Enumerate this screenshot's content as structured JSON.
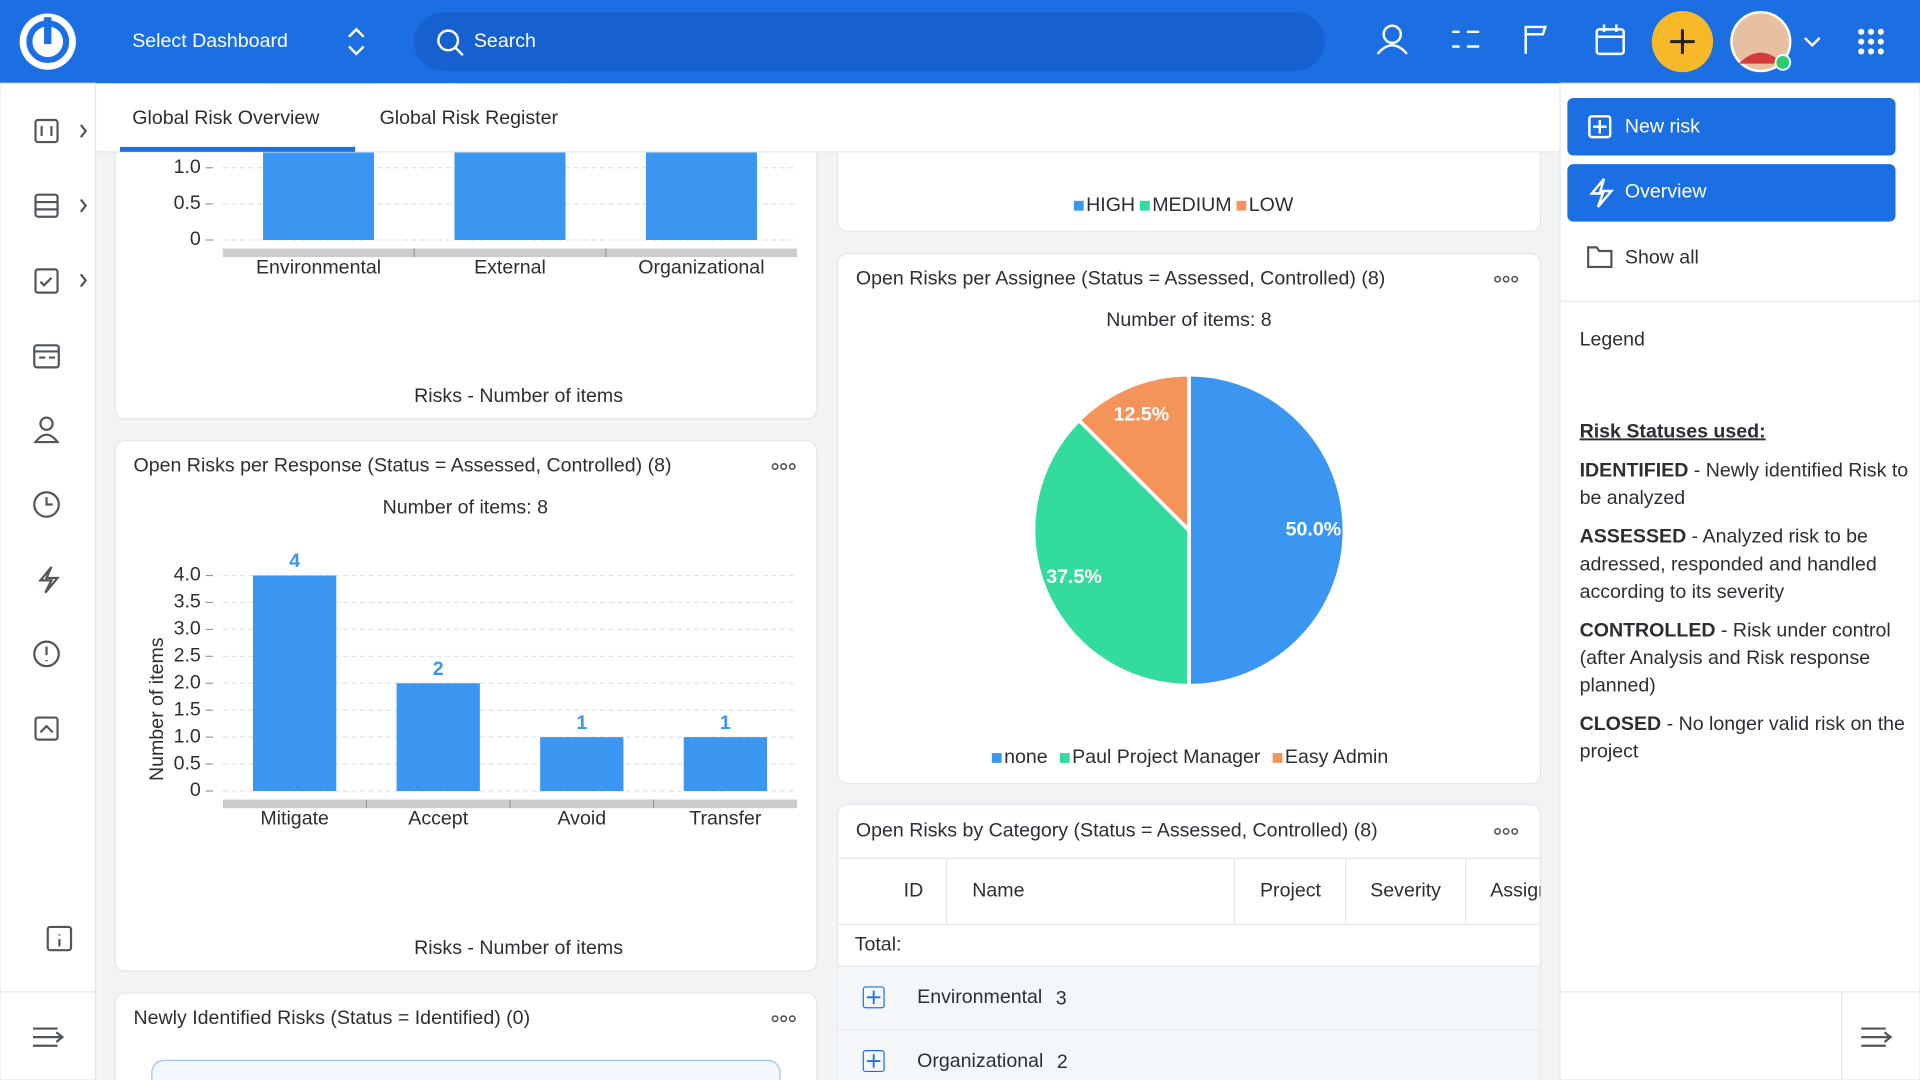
{
  "header": {
    "dashboard_select": "Select Dashboard",
    "search": "Search"
  },
  "tabs": [
    "Global Risk Overview",
    "Global Risk Register"
  ],
  "actions": [
    "New risk",
    "Overview",
    "Show all"
  ],
  "legend_panel": {
    "title": "Legend",
    "heading": "Risk Statuses used:",
    "items": [
      {
        "term": "IDENTIFIED",
        "lines": [
          " - Newly identified Risk to",
          "be analyzed"
        ]
      },
      {
        "term": "ASSESSED",
        "lines": [
          " - Analyzed risk to be",
          "adressed, responded and handled",
          "according to its severity"
        ]
      },
      {
        "term": "CONTROLLED",
        "lines": [
          " - Risk under control",
          "(after Analysis and Risk response",
          "planned)"
        ]
      },
      {
        "term": "CLOSED",
        "lines": [
          " - No longer valid risk on the",
          "project"
        ]
      }
    ]
  },
  "severity_widget": {
    "legend": [
      {
        "name": "HIGH",
        "color": "#3a96f0"
      },
      {
        "name": "MEDIUM",
        "color": "#33dc9c"
      },
      {
        "name": "LOW",
        "color": "#f5945a"
      }
    ]
  },
  "chart_data": [
    {
      "type": "bar",
      "x_label": "Risks - Number of items",
      "categories": [
        "Environmental",
        "External",
        "Organizational"
      ],
      "values": [
        3,
        3,
        2
      ],
      "color": "#3a96f0",
      "ylim": [
        0,
        3.2
      ],
      "yticks": [
        0,
        0.5,
        {
          "value": 1,
          "label": "1.0"
        }
      ],
      "grid": true
    },
    {
      "type": "bar",
      "title": "Open Risks per Response (Status = Assessed, Controlled) (8)",
      "subtitle": "Number of items: 8",
      "y_label": "Number of items",
      "x_label": "Risks - Number of items",
      "categories": [
        "Mitigate",
        "Accept",
        "Avoid",
        "Transfer"
      ],
      "values": [
        4,
        2,
        1,
        1
      ],
      "color": "#3a96f0",
      "ylim": [
        0,
        4.4
      ],
      "yticks": [
        0,
        0.5,
        {
          "value": 1,
          "label": "1.0"
        },
        1.5,
        {
          "value": 2,
          "label": "2.0"
        },
        2.5,
        {
          "value": 3,
          "label": "3.0"
        },
        3.5,
        {
          "value": 4,
          "label": "4.0"
        }
      ],
      "grid": true
    },
    {
      "type": "pie",
      "title": "Open Risks per Assignee (Status = Assessed, Controlled) (8)",
      "subtitle": "Number of items: 8",
      "series": [
        {
          "name": "none",
          "color": "#3a96f0"
        },
        {
          "name": "Paul Project Manager",
          "color": "#33dc9c"
        },
        {
          "name": "Easy Admin",
          "color": "#f5945a"
        }
      ],
      "values": [
        50,
        37.5,
        12.5
      ],
      "value_labels": [
        "50.0%",
        "37.5%",
        "12.5%"
      ]
    }
  ],
  "category_table": {
    "title": "Open Risks by Category (Status = Assessed, Controlled) (8)",
    "columns": [
      "ID",
      "Name",
      "Project",
      "Severity",
      "Assignee"
    ],
    "total_label": "Total:",
    "groups": [
      {
        "name": "Environmental",
        "count": 3
      },
      {
        "name": "Organizational",
        "count": 2
      }
    ]
  },
  "identified_widget": {
    "title": "Newly Identified Risks (Status = Identified) (0)"
  }
}
